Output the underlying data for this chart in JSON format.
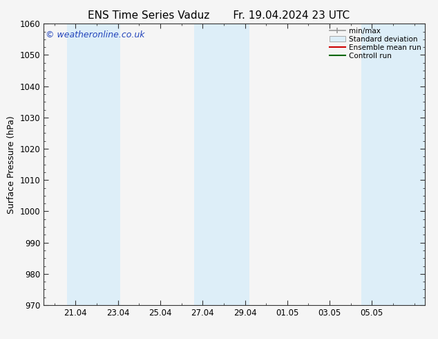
{
  "title_left": "ENS Time Series Vaduz",
  "title_right": "Fr. 19.04.2024 23 UTC",
  "ylabel": "Surface Pressure (hPa)",
  "ylim": [
    970,
    1060
  ],
  "yticks": [
    970,
    980,
    990,
    1000,
    1010,
    1020,
    1030,
    1040,
    1050,
    1060
  ],
  "xtick_labels": [
    "21.04",
    "23.04",
    "25.04",
    "27.04",
    "29.04",
    "01.05",
    "03.05",
    "05.05"
  ],
  "background_color": "#f5f5f5",
  "plot_bg_color": "#f5f5f5",
  "shaded_bands": [
    {
      "x_start": 20.0,
      "x_end": 22.0
    },
    {
      "x_start": 22.0,
      "x_end": 23.0
    },
    {
      "x_start": 27.0,
      "x_end": 28.0
    },
    {
      "x_start": 28.0,
      "x_end": 29.0
    },
    {
      "x_start": 35.0,
      "x_end": 37.0
    }
  ],
  "shaded_color": "#ddeef8",
  "watermark_text": "© weatheronline.co.uk",
  "watermark_color": "#2244bb",
  "watermark_fontsize": 9,
  "legend_labels": [
    "min/max",
    "Standard deviation",
    "Ensemble mean run",
    "Controll run"
  ],
  "legend_colors_line": [
    "#999999",
    "#aabbcc",
    "#cc0000",
    "#006600"
  ],
  "title_fontsize": 11,
  "axis_label_fontsize": 9,
  "tick_fontsize": 8.5,
  "xmin": 19.5,
  "xmax": 37.5,
  "xtick_positions": [
    21,
    23,
    25,
    27,
    29,
    31,
    33,
    35
  ]
}
